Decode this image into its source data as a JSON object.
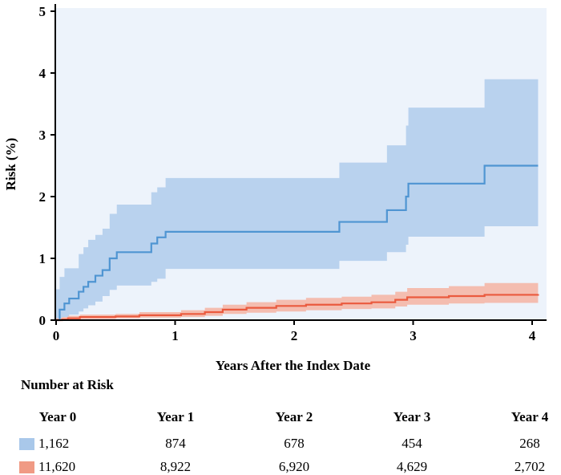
{
  "chart_data": {
    "type": "line",
    "xlabel": "Years After the Index Date",
    "ylabel": "Risk (%)",
    "xlim": [
      0,
      4.2
    ],
    "ylim": [
      0,
      5
    ],
    "x_ticks": [
      "0",
      "1",
      "2",
      "3",
      "4"
    ],
    "y_ticks": [
      "0",
      "1",
      "2",
      "3",
      "4",
      "5"
    ],
    "step": true,
    "series": [
      {
        "color": "#4f95d2",
        "band_color": "#b9d2ee",
        "points": [
          [
            0,
            0
          ],
          [
            0.03,
            0.17
          ],
          [
            0.07,
            0.27
          ],
          [
            0.11,
            0.35
          ],
          [
            0.19,
            0.46
          ],
          [
            0.23,
            0.54
          ],
          [
            0.27,
            0.62
          ],
          [
            0.33,
            0.72
          ],
          [
            0.39,
            0.81
          ],
          [
            0.45,
            1.0
          ],
          [
            0.51,
            1.1
          ],
          [
            0.8,
            1.24
          ],
          [
            0.85,
            1.34
          ],
          [
            0.92,
            1.43
          ],
          [
            2.38,
            1.59
          ],
          [
            2.78,
            1.78
          ],
          [
            2.94,
            2.0
          ],
          [
            2.96,
            2.21
          ],
          [
            3.6,
            2.5
          ],
          [
            4.05,
            2.5
          ]
        ],
        "lower": [
          [
            0,
            0
          ],
          [
            0.03,
            0.02
          ],
          [
            0.07,
            0.05
          ],
          [
            0.11,
            0.09
          ],
          [
            0.19,
            0.14
          ],
          [
            0.23,
            0.19
          ],
          [
            0.27,
            0.24
          ],
          [
            0.33,
            0.3
          ],
          [
            0.39,
            0.39
          ],
          [
            0.45,
            0.49
          ],
          [
            0.51,
            0.56
          ],
          [
            0.8,
            0.62
          ],
          [
            0.85,
            0.67
          ],
          [
            0.92,
            0.83
          ],
          [
            2.38,
            0.96
          ],
          [
            2.78,
            1.1
          ],
          [
            2.94,
            1.22
          ],
          [
            2.96,
            1.35
          ],
          [
            3.6,
            1.52
          ],
          [
            4.05,
            1.52
          ]
        ],
        "upper": [
          [
            0,
            0.5
          ],
          [
            0.03,
            0.7
          ],
          [
            0.07,
            0.84
          ],
          [
            0.11,
            0.84
          ],
          [
            0.19,
            1.07
          ],
          [
            0.23,
            1.18
          ],
          [
            0.27,
            1.3
          ],
          [
            0.33,
            1.38
          ],
          [
            0.39,
            1.48
          ],
          [
            0.45,
            1.72
          ],
          [
            0.51,
            1.87
          ],
          [
            0.8,
            2.07
          ],
          [
            0.85,
            2.15
          ],
          [
            0.92,
            2.3
          ],
          [
            2.38,
            2.55
          ],
          [
            2.78,
            2.83
          ],
          [
            2.94,
            3.15
          ],
          [
            2.96,
            3.44
          ],
          [
            3.6,
            3.9
          ],
          [
            4.05,
            3.9
          ]
        ]
      },
      {
        "color": "#ea5a3e",
        "band_color": "#f4bdb0",
        "points": [
          [
            0,
            0
          ],
          [
            0.05,
            0.01
          ],
          [
            0.1,
            0.03
          ],
          [
            0.2,
            0.05
          ],
          [
            0.5,
            0.06
          ],
          [
            0.7,
            0.08
          ],
          [
            1.05,
            0.1
          ],
          [
            1.25,
            0.13
          ],
          [
            1.4,
            0.17
          ],
          [
            1.6,
            0.2
          ],
          [
            1.85,
            0.23
          ],
          [
            2.1,
            0.25
          ],
          [
            2.4,
            0.27
          ],
          [
            2.65,
            0.29
          ],
          [
            2.85,
            0.33
          ],
          [
            2.95,
            0.37
          ],
          [
            3.3,
            0.39
          ],
          [
            3.6,
            0.41
          ],
          [
            4.05,
            0.42
          ]
        ],
        "lower": [
          [
            0,
            0
          ],
          [
            0.05,
            0.0
          ],
          [
            0.1,
            0.01
          ],
          [
            0.2,
            0.02
          ],
          [
            0.5,
            0.03
          ],
          [
            0.7,
            0.04
          ],
          [
            1.05,
            0.05
          ],
          [
            1.25,
            0.07
          ],
          [
            1.4,
            0.1
          ],
          [
            1.6,
            0.12
          ],
          [
            1.85,
            0.14
          ],
          [
            2.1,
            0.16
          ],
          [
            2.4,
            0.18
          ],
          [
            2.65,
            0.19
          ],
          [
            2.85,
            0.22
          ],
          [
            2.95,
            0.25
          ],
          [
            3.3,
            0.27
          ],
          [
            3.6,
            0.28
          ],
          [
            4.05,
            0.29
          ]
        ],
        "upper": [
          [
            0,
            0.03
          ],
          [
            0.05,
            0.05
          ],
          [
            0.1,
            0.07
          ],
          [
            0.2,
            0.09
          ],
          [
            0.5,
            0.1
          ],
          [
            0.7,
            0.13
          ],
          [
            1.05,
            0.16
          ],
          [
            1.25,
            0.2
          ],
          [
            1.4,
            0.25
          ],
          [
            1.6,
            0.29
          ],
          [
            1.85,
            0.33
          ],
          [
            2.1,
            0.36
          ],
          [
            2.4,
            0.38
          ],
          [
            2.65,
            0.41
          ],
          [
            2.85,
            0.46
          ],
          [
            2.95,
            0.52
          ],
          [
            3.3,
            0.55
          ],
          [
            3.6,
            0.6
          ],
          [
            4.05,
            0.62
          ]
        ]
      }
    ]
  },
  "risk_table": {
    "title": "Number at Risk",
    "headers": [
      "Year 0",
      "Year 1",
      "Year 2",
      "Year 3",
      "Year 4"
    ],
    "rows": [
      {
        "color": "#a9c8ea",
        "values": [
          "1,162",
          "874",
          "678",
          "454",
          "268"
        ]
      },
      {
        "color": "#f09a84",
        "values": [
          "11,620",
          "8,922",
          "6,920",
          "4,629",
          "2,702"
        ]
      }
    ]
  }
}
